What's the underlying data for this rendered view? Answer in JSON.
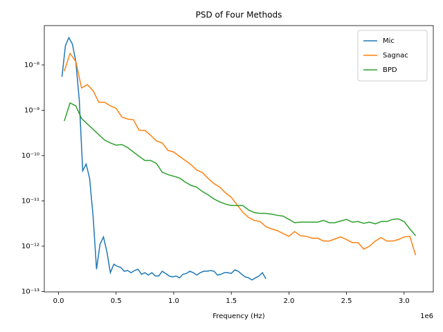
{
  "chart_data": {
    "type": "line",
    "title": "PSD of Four Methods",
    "xlabel": "Frequency (Hz)",
    "x_offset_label": "1e6",
    "log_y": true,
    "legend": "upper right",
    "xlim": [
      -123500,
      3253500
    ],
    "xticks": [
      {
        "value": 0,
        "label": "0.0"
      },
      {
        "value": 500000,
        "label": "0.5"
      },
      {
        "value": 1000000,
        "label": "1.0"
      },
      {
        "value": 1500000,
        "label": "1.5"
      },
      {
        "value": 2000000,
        "label": "2.0"
      },
      {
        "value": 2500000,
        "label": "2.5"
      },
      {
        "value": 3000000,
        "label": "3.0"
      }
    ],
    "ylim": [
      9.8e-14,
      7.4e-08
    ],
    "yticks": [
      {
        "value": 1e-13,
        "label": "10⁻¹³"
      },
      {
        "value": 1e-12,
        "label": "10⁻¹²"
      },
      {
        "value": 1e-11,
        "label": "10⁻¹¹"
      },
      {
        "value": 1e-10,
        "label": "10⁻¹⁰"
      },
      {
        "value": 1e-09,
        "label": "10⁻⁹"
      },
      {
        "value": 1e-08,
        "label": "10⁻⁸"
      }
    ],
    "series": [
      {
        "name": "Mic",
        "color": "#1f77b4",
        "x": [
          30000,
          60000,
          90000,
          120000,
          150000,
          180000,
          210000,
          240000,
          270000,
          300000,
          330000,
          360000,
          390000,
          420000,
          450000,
          480000,
          510000,
          540000,
          570000,
          600000,
          630000,
          660000,
          690000,
          720000,
          750000,
          780000,
          810000,
          840000,
          870000,
          900000,
          930000,
          960000,
          990000,
          1020000,
          1050000,
          1080000,
          1110000,
          1140000,
          1170000,
          1200000,
          1230000,
          1260000,
          1290000,
          1320000,
          1350000,
          1380000,
          1410000,
          1440000,
          1470000,
          1500000,
          1530000,
          1560000,
          1590000,
          1620000,
          1650000,
          1680000,
          1710000,
          1740000,
          1770000,
          1800000
        ],
        "values": [
          5.5e-09,
          2.7e-08,
          4e-08,
          2.9e-08,
          1.2e-08,
          1.7e-09,
          4.6e-11,
          6.5e-11,
          3.1e-11,
          4.6e-12,
          3.1e-13,
          1.1e-12,
          1.6e-12,
          7.5e-13,
          2.6e-13,
          4e-13,
          3.6e-13,
          3.4e-13,
          2.8e-13,
          2.9e-13,
          2.6e-13,
          2.9e-13,
          3.1e-13,
          2.4e-13,
          2.6e-13,
          2.3e-13,
          2.6e-13,
          2.2e-13,
          2.2e-13,
          2.8e-13,
          2.5e-13,
          2.2e-13,
          2.1e-13,
          2.2e-13,
          2e-13,
          2.4e-13,
          2.5e-13,
          2.8e-13,
          2.6e-13,
          2.3e-13,
          2.6e-13,
          2.8e-13,
          2.8e-13,
          2.9e-13,
          2.8e-13,
          2.3e-13,
          2.4e-13,
          2.6e-13,
          2.6e-13,
          2.5e-13,
          3e-13,
          2.8e-13,
          2.4e-13,
          2.1e-13,
          2e-13,
          1.8e-13,
          2e-13,
          2.2e-13,
          2.6e-13,
          1.9e-13
        ]
      },
      {
        "name": "Sagnac",
        "color": "#ff7f0e",
        "x": [
          50000,
          100000,
          150000,
          200000,
          250000,
          300000,
          350000,
          400000,
          450000,
          500000,
          550000,
          600000,
          650000,
          700000,
          750000,
          800000,
          850000,
          900000,
          950000,
          1000000,
          1050000,
          1100000,
          1150000,
          1200000,
          1250000,
          1300000,
          1350000,
          1400000,
          1450000,
          1500000,
          1550000,
          1600000,
          1650000,
          1700000,
          1750000,
          1800000,
          1850000,
          1900000,
          1950000,
          2000000,
          2050000,
          2100000,
          2150000,
          2200000,
          2250000,
          2300000,
          2350000,
          2400000,
          2450000,
          2500000,
          2550000,
          2600000,
          2650000,
          2700000,
          2750000,
          2800000,
          2850000,
          2900000,
          2950000,
          3000000,
          3050000,
          3100000
        ],
        "values": [
          7.3e-09,
          1.8e-08,
          1.2e-08,
          3.1e-09,
          3.7e-09,
          2.7e-09,
          1.5e-09,
          1.5e-09,
          1.25e-09,
          1.1e-09,
          7.1e-10,
          6.4e-10,
          6.2e-10,
          3.6e-10,
          3.6e-10,
          2.8e-10,
          2.1e-10,
          1.9e-10,
          1.3e-10,
          1.2e-10,
          9.6e-11,
          7.8e-11,
          6.3e-11,
          4.8e-11,
          4.2e-11,
          3.1e-11,
          2.4e-11,
          2e-11,
          1.5e-11,
          1.2e-11,
          8.2e-12,
          5.6e-12,
          4.3e-12,
          3.7e-12,
          3.5e-12,
          2.7e-12,
          2.4e-12,
          2.2e-12,
          1.9e-12,
          1.65e-12,
          2.1e-12,
          1.7e-12,
          1.65e-12,
          1.5e-12,
          1.5e-12,
          1.3e-12,
          1.3e-12,
          1.45e-12,
          1.6e-12,
          1.4e-12,
          1.2e-12,
          1.2e-12,
          8.6e-13,
          1e-12,
          1.3e-12,
          1.55e-12,
          1.3e-12,
          1.3e-12,
          1.4e-12,
          1.6e-12,
          1.65e-12,
          6.3e-13
        ]
      },
      {
        "name": "BPD",
        "color": "#2ca02c",
        "x": [
          50000,
          100000,
          150000,
          200000,
          250000,
          300000,
          350000,
          400000,
          450000,
          500000,
          550000,
          600000,
          650000,
          700000,
          750000,
          800000,
          850000,
          900000,
          950000,
          1000000,
          1050000,
          1100000,
          1150000,
          1200000,
          1250000,
          1300000,
          1350000,
          1400000,
          1450000,
          1500000,
          1550000,
          1600000,
          1650000,
          1700000,
          1750000,
          1800000,
          1850000,
          1900000,
          1950000,
          2000000,
          2050000,
          2100000,
          2150000,
          2200000,
          2250000,
          2300000,
          2350000,
          2400000,
          2450000,
          2500000,
          2550000,
          2600000,
          2650000,
          2700000,
          2750000,
          2800000,
          2850000,
          2900000,
          2950000,
          3000000,
          3050000,
          3100000
        ],
        "values": [
          5.8e-10,
          1.45e-09,
          1.25e-09,
          6.6e-10,
          5e-10,
          3.8e-10,
          2.9e-10,
          2.2e-10,
          1.9e-10,
          1.7e-10,
          1.75e-10,
          1.5e-10,
          1.2e-10,
          9.6e-11,
          7.8e-11,
          7.8e-11,
          6.7e-11,
          4.3e-11,
          3.8e-11,
          3.5e-11,
          3.2e-11,
          2.6e-11,
          2.2e-11,
          2e-11,
          1.6e-11,
          1.35e-11,
          1.1e-11,
          9.5e-12,
          8.5e-12,
          7.9e-12,
          7.9e-12,
          7.9e-12,
          6.3e-12,
          5.5e-12,
          5.3e-12,
          5.3e-12,
          5.1e-12,
          4.8e-12,
          4.6e-12,
          3.9e-12,
          3.3e-12,
          3.4e-12,
          3.4e-12,
          3.4e-12,
          3.4e-12,
          3.7e-12,
          3.3e-12,
          3.3e-12,
          3.6e-12,
          3.9e-12,
          3.4e-12,
          3.5e-12,
          3.2e-12,
          3.4e-12,
          3.1e-12,
          3.5e-12,
          3.5e-12,
          3.9e-12,
          4e-12,
          3.5e-12,
          2.4e-12,
          1.7e-12
        ]
      }
    ]
  }
}
